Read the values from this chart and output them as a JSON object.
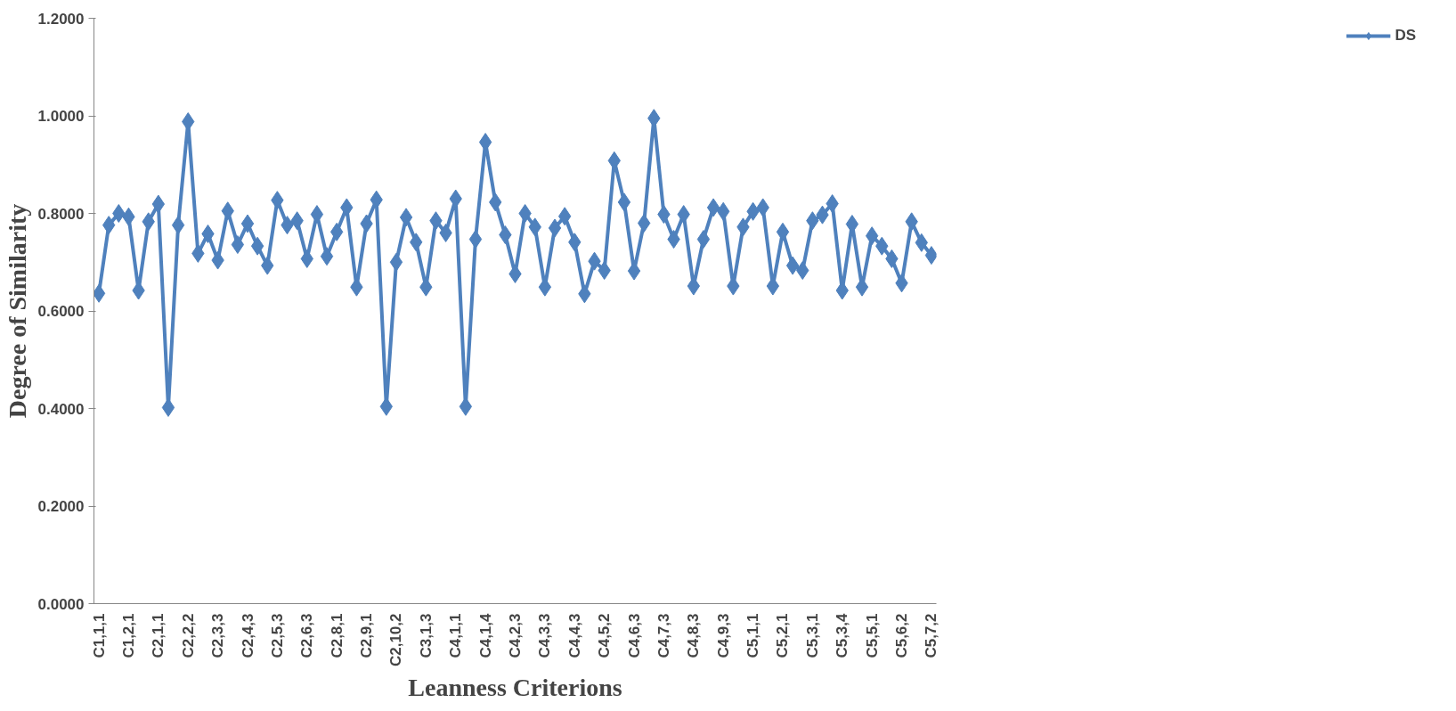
{
  "chart_data": {
    "type": "line",
    "xlabel": "Leanness Criterions",
    "ylabel": "Degree of Similarity",
    "categories": [
      "C1,1,1",
      null,
      null,
      "C1,2,1",
      null,
      null,
      "C2,1,1",
      null,
      null,
      "C2,2,2",
      null,
      null,
      "C2,3,3",
      null,
      null,
      "C2,4,3",
      null,
      null,
      "C2,5,3",
      null,
      null,
      "C2,6,3",
      null,
      null,
      "C2,8,1",
      null,
      null,
      "C2,9,1",
      null,
      null,
      "C2,10,2",
      null,
      null,
      "C3,1,3",
      null,
      null,
      "C4,1,1",
      null,
      null,
      "C4,1,4",
      null,
      null,
      "C4,2,3",
      null,
      null,
      "C4,3,3",
      null,
      null,
      "C4,4,3",
      null,
      null,
      "C4,5,2",
      null,
      null,
      "C4,6,3",
      null,
      null,
      "C4,7,3",
      null,
      null,
      "C4,8,3",
      null,
      null,
      "C4,9,3",
      null,
      null,
      "C5,1,1",
      null,
      null,
      "C5,2,1",
      null,
      null,
      "C5,3,1",
      null,
      null,
      "C5,3,4",
      null,
      null,
      "C5,5,1",
      null,
      null,
      "C5,6,2",
      null,
      null,
      "C5,7,2"
    ],
    "series": [
      {
        "name": "DS",
        "color": "#4f81bd",
        "values": [
          0.636,
          0.776,
          0.8,
          0.793,
          0.642,
          0.783,
          0.819,
          0.402,
          0.776,
          0.988,
          0.718,
          0.758,
          0.704,
          0.805,
          0.736,
          0.779,
          0.733,
          0.693,
          0.827,
          0.776,
          0.785,
          0.707,
          0.798,
          0.712,
          0.762,
          0.812,
          0.649,
          0.779,
          0.828,
          0.404,
          0.7,
          0.792,
          0.741,
          0.649,
          0.785,
          0.76,
          0.83,
          0.404,
          0.747,
          0.946,
          0.823,
          0.756,
          0.676,
          0.8,
          0.772,
          0.649,
          0.77,
          0.794,
          0.741,
          0.635,
          0.702,
          0.683,
          0.908,
          0.823,
          0.682,
          0.78,
          0.995,
          0.798,
          0.747,
          0.798,
          0.651,
          0.747,
          0.812,
          0.804,
          0.651,
          0.772,
          0.804,
          0.812,
          0.651,
          0.762,
          0.693,
          0.683,
          0.785,
          0.797,
          0.82,
          0.642,
          0.778,
          0.649,
          0.754,
          0.733,
          0.707,
          0.657,
          0.783,
          0.74,
          0.714
        ]
      }
    ],
    "ylim": [
      0,
      1.2
    ],
    "yticks": [
      {
        "value": 0,
        "label": "0.0000"
      },
      {
        "value": 0.2,
        "label": "0.2000"
      },
      {
        "value": 0.4,
        "label": "0.4000"
      },
      {
        "value": 0.6,
        "label": "0.6000"
      },
      {
        "value": 0.8,
        "label": "0.8000"
      },
      {
        "value": 1.0,
        "label": "1.0000"
      },
      {
        "value": 1.2,
        "label": "1.2000"
      }
    ],
    "grid": false,
    "legend": "right",
    "marker": "diamond",
    "line_style": "solid"
  }
}
